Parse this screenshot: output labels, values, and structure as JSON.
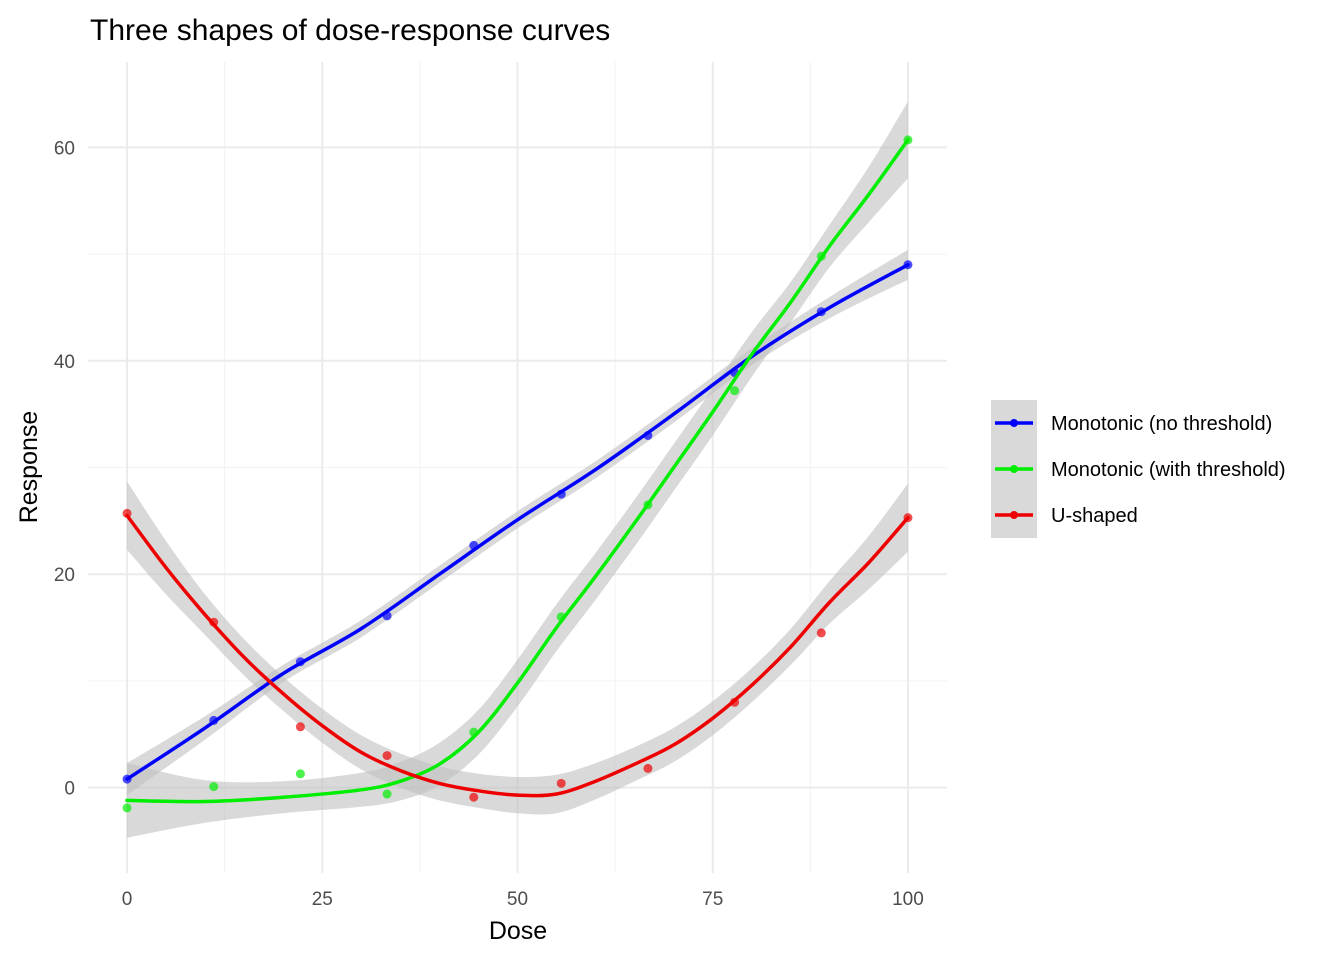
{
  "chart_data": {
    "type": "line",
    "title": "Three shapes of dose-response curves",
    "xlabel": "Dose",
    "ylabel": "Response",
    "xlim": [
      -5,
      105
    ],
    "ylim": [
      -8,
      68
    ],
    "x_ticks": [
      0,
      25,
      50,
      75,
      100
    ],
    "x_tick_labels": [
      "0",
      "25",
      "50",
      "75",
      "100"
    ],
    "y_ticks": [
      0,
      20,
      40,
      60
    ],
    "y_tick_labels": [
      "0",
      "20",
      "40",
      "60"
    ],
    "x_minor_ticks": [
      12.5,
      37.5,
      62.5,
      87.5
    ],
    "y_minor_ticks": [
      10,
      30,
      50
    ],
    "grid": true,
    "legend_position": "right",
    "series": [
      {
        "name": "Monotonic (no threshold)",
        "color": "#0000ff",
        "points_x": [
          0,
          11.1,
          22.2,
          33.3,
          44.4,
          55.6,
          66.7,
          77.8,
          88.9,
          100
        ],
        "points_y": [
          0.8,
          6.3,
          11.8,
          16.1,
          22.7,
          27.5,
          33.0,
          38.9,
          44.6,
          49.0
        ],
        "curve_x": [
          0,
          10,
          20,
          30,
          40,
          50,
          60,
          70,
          80,
          90,
          100
        ],
        "curve_y": [
          0.8,
          5.6,
          10.7,
          14.9,
          20.0,
          25.1,
          29.8,
          35.0,
          40.4,
          45.0,
          49.0
        ],
        "band_halfwidth": [
          1.5,
          1.1,
          0.8,
          0.8,
          0.8,
          0.8,
          0.8,
          0.8,
          0.8,
          1.0,
          1.4
        ]
      },
      {
        "name": "Monotonic (with threshold)",
        "color": "#00ee00",
        "points_x": [
          0,
          11.1,
          22.2,
          33.3,
          44.4,
          55.6,
          66.7,
          77.8,
          88.9,
          100
        ],
        "points_y": [
          -1.9,
          0.1,
          1.3,
          -0.6,
          5.2,
          16.0,
          26.5,
          37.2,
          49.8,
          60.7
        ],
        "curve_x": [
          0,
          10,
          20,
          30,
          35,
          40,
          45,
          50,
          55,
          60,
          65,
          70,
          75,
          80,
          85,
          90,
          95,
          100
        ],
        "curve_y": [
          -1.2,
          -1.3,
          -0.9,
          -0.2,
          0.6,
          2.2,
          5.2,
          9.8,
          15.0,
          19.8,
          24.8,
          30.0,
          35.2,
          40.6,
          45.5,
          50.8,
          55.6,
          60.7
        ],
        "band_halfwidth": [
          3.5,
          2.0,
          1.5,
          1.6,
          1.8,
          2.0,
          2.1,
          2.2,
          2.2,
          2.2,
          2.2,
          2.2,
          2.2,
          2.1,
          1.9,
          2.0,
          2.6,
          3.6
        ]
      },
      {
        "name": "U-shaped",
        "color": "#ee0000",
        "points_x": [
          0,
          11.1,
          22.2,
          33.3,
          44.4,
          55.6,
          66.7,
          77.8,
          88.9,
          100
        ],
        "points_y": [
          25.7,
          15.5,
          5.7,
          3.0,
          -0.9,
          0.4,
          1.8,
          8.0,
          14.5,
          25.3
        ],
        "curve_x": [
          0,
          5,
          10,
          15,
          20,
          25,
          30,
          35,
          40,
          45,
          50,
          55,
          60,
          65,
          70,
          75,
          80,
          85,
          90,
          95,
          100
        ],
        "curve_y": [
          25.5,
          20.6,
          16.2,
          12.2,
          8.8,
          5.8,
          3.3,
          1.6,
          0.4,
          -0.3,
          -0.7,
          -0.6,
          0.6,
          2.2,
          4.0,
          6.5,
          9.6,
          13.2,
          17.4,
          21.1,
          25.3
        ],
        "band_halfwidth": [
          3.2,
          2.5,
          1.9,
          1.7,
          1.6,
          1.6,
          1.6,
          1.6,
          1.6,
          1.6,
          1.7,
          1.8,
          1.7,
          1.6,
          1.6,
          1.6,
          1.6,
          1.7,
          2.0,
          2.5,
          3.2
        ]
      }
    ]
  }
}
